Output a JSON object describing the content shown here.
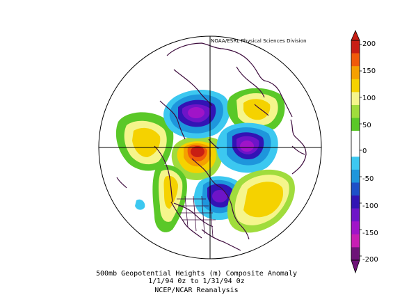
{
  "credit": "NOAA/ESRL Physical Sciences Division",
  "caption": {
    "line1": "500mb Geopotential Heights (m)   Composite Anomaly",
    "line2": "1/1/94 0z  to 1/31/94 0z",
    "line3": "NCEP/NCAR Reanalysis"
  },
  "colorbar": {
    "labels": [
      "200",
      "150",
      "100",
      "50",
      "0",
      "-50",
      "-100",
      "-150",
      "-200"
    ],
    "colors": [
      "#c81e14",
      "#f05a0a",
      "#f5a000",
      "#f5d200",
      "#f5f58c",
      "#a0dc3c",
      "#5ac828",
      "#ffffff",
      "#ffffff",
      "#3cc8f0",
      "#1e96dc",
      "#1e50c8",
      "#3214b4",
      "#6e14c8",
      "#a014c8",
      "#c81eb4",
      "#6e1478"
    ]
  },
  "colors": {
    "coast": "#3c0a3c",
    "grid": "#000000"
  }
}
